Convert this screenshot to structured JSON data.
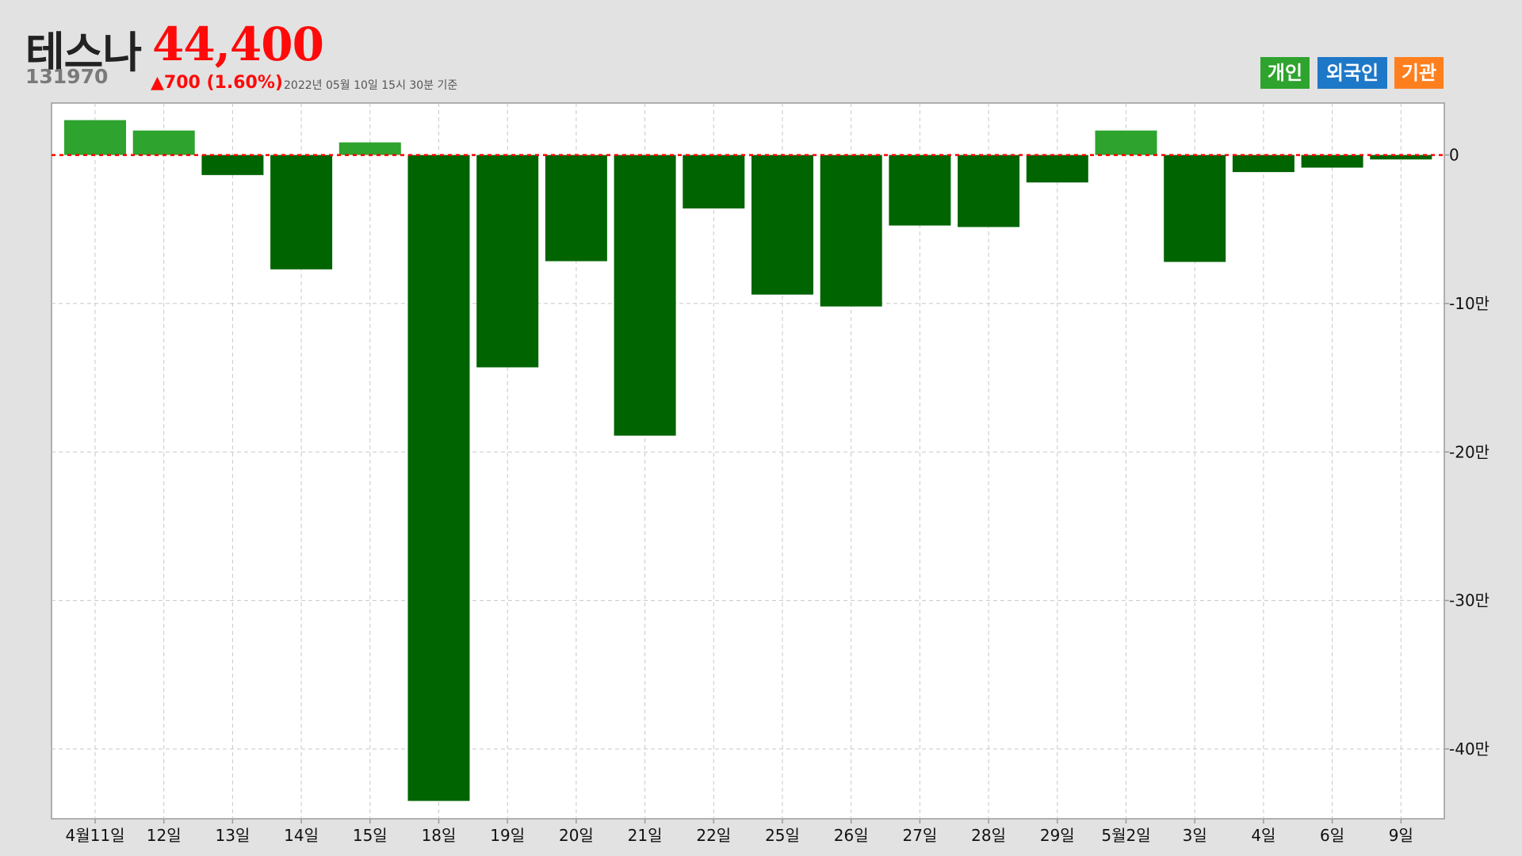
{
  "header": {
    "name": "테스나",
    "price": "44,400",
    "code": "131970",
    "change": "▲700 (1.60%)",
    "as_of": "2022년 05월 10일 15시 30분 기준"
  },
  "legend": [
    {
      "label": "개인",
      "color": "#2ea32e"
    },
    {
      "label": "외국인",
      "color": "#1e78c8"
    },
    {
      "label": "기관",
      "color": "#ff7f1e"
    }
  ],
  "colors": {
    "positive": "#2ea32e",
    "negative": "#006400",
    "zero_line": "#ff0000"
  },
  "chart_data": {
    "type": "bar",
    "series": [
      {
        "name": "개인",
        "values": [
          23500,
          16500,
          -13500,
          -77000,
          8500,
          -435000,
          -143000,
          -71500,
          -189000,
          -36000,
          -94000,
          -102000,
          -47500,
          -48500,
          -18500,
          16500,
          -72000,
          -11500,
          -8500,
          -3000
        ]
      }
    ],
    "categories": [
      "4월11일",
      "12일",
      "13일",
      "14일",
      "15일",
      "18일",
      "19일",
      "20일",
      "21일",
      "22일",
      "25일",
      "26일",
      "27일",
      "28일",
      "29일",
      "5월2일",
      "3일",
      "4일",
      "6일",
      "9일"
    ],
    "yticks": [
      0,
      -100000,
      -200000,
      -300000,
      -400000
    ],
    "ytick_labels": [
      "0",
      "-10만",
      "-20만",
      "-30만",
      "-40만"
    ],
    "ylim": [
      -447000,
      35000
    ],
    "grid": true
  }
}
